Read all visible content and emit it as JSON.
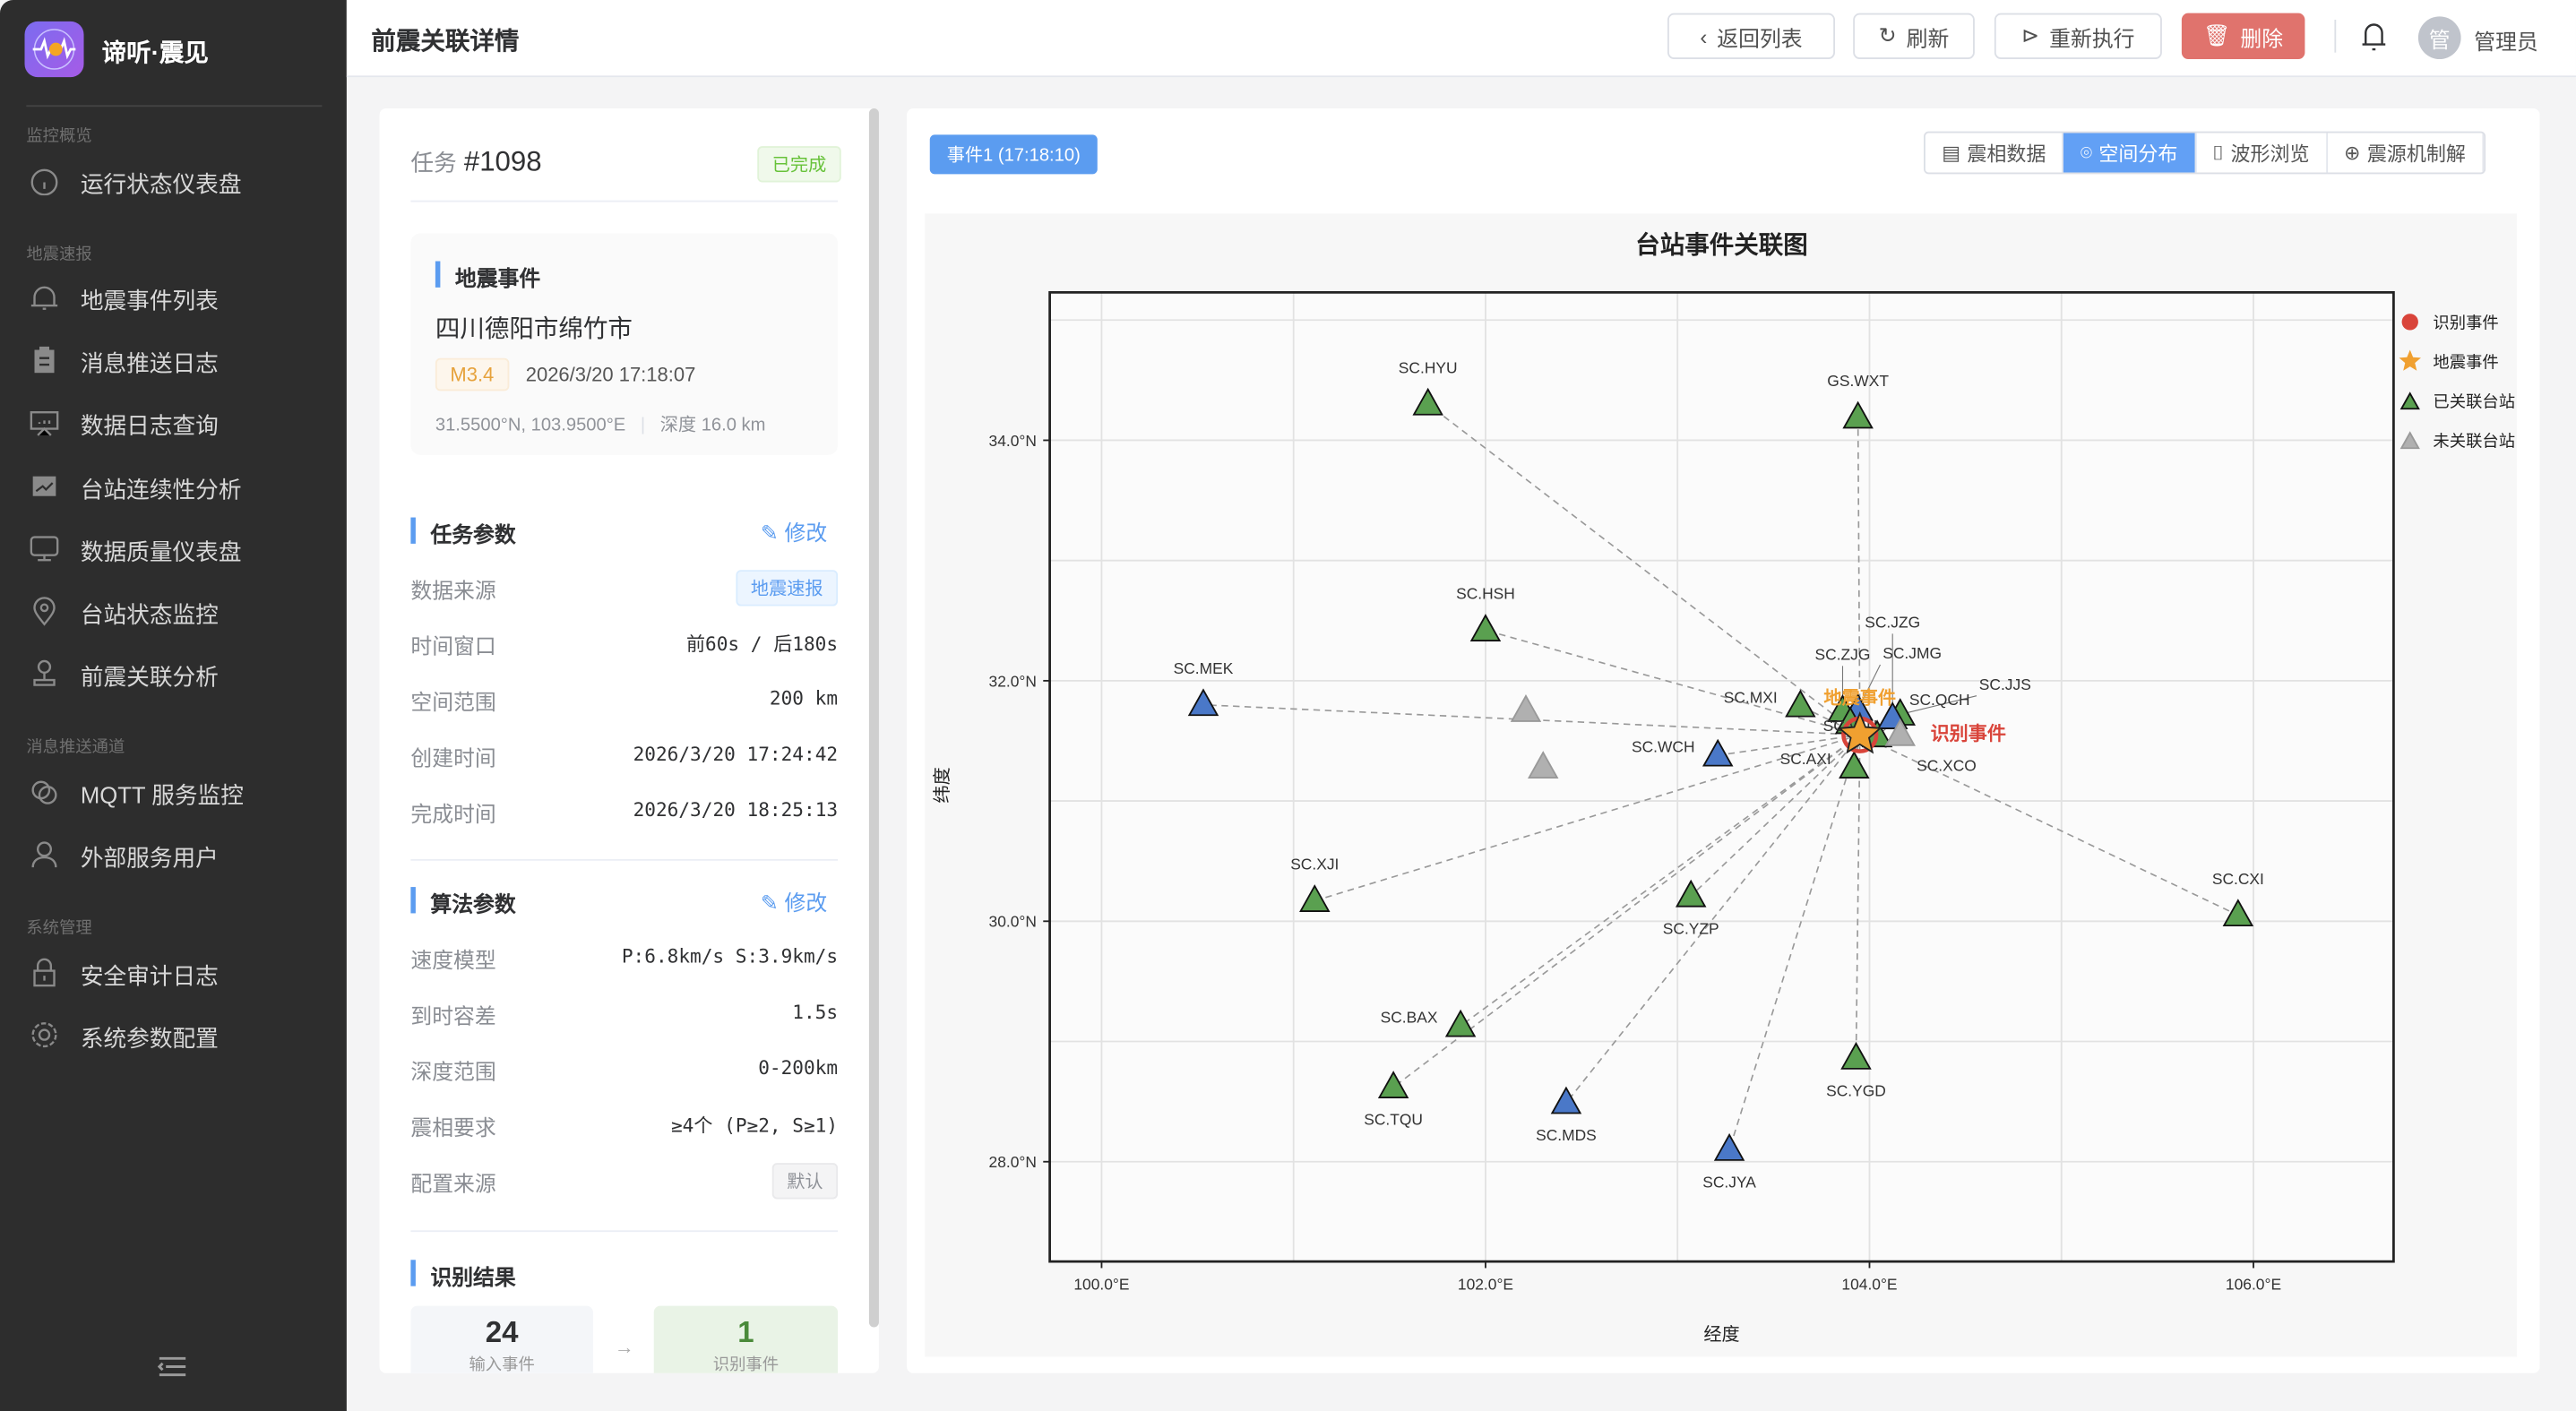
{
  "app": {
    "title": "谛听·震见"
  },
  "sidebar": {
    "sections": [
      {
        "label": "监控概览",
        "items": [
          {
            "label": "运行状态仪表盘",
            "icon": "gauge-icon"
          }
        ]
      },
      {
        "label": "地震速报",
        "items": [
          {
            "label": "地震事件列表",
            "icon": "bell-icon"
          },
          {
            "label": "消息推送日志",
            "icon": "clipboard-icon"
          },
          {
            "label": "数据日志查询",
            "icon": "presentation-icon"
          },
          {
            "label": "台站连续性分析",
            "icon": "line-chart-icon"
          },
          {
            "label": "数据质量仪表盘",
            "icon": "monitor-icon"
          },
          {
            "label": "台站状态监控",
            "icon": "location-pin-icon"
          },
          {
            "label": "前震关联分析",
            "icon": "stamp-icon"
          }
        ]
      },
      {
        "label": "消息推送通道",
        "items": [
          {
            "label": "MQTT 服务监控",
            "icon": "link-icon"
          },
          {
            "label": "外部服务用户",
            "icon": "user-icon"
          }
        ]
      },
      {
        "label": "系统管理",
        "items": [
          {
            "label": "安全审计日志",
            "icon": "lock-icon"
          },
          {
            "label": "系统参数配置",
            "icon": "gear-icon"
          }
        ]
      }
    ]
  },
  "header": {
    "title": "前震关联详情",
    "back": "返回列表",
    "refresh": "刷新",
    "rerun": "重新执行",
    "delete": "删除",
    "user": "管理员",
    "avatar": "管"
  },
  "task": {
    "prefix": "任务",
    "id": "#1098",
    "status": "已完成",
    "event": {
      "heading": "地震事件",
      "location": "四川德阳市绵竹市",
      "magnitude": "M3.4",
      "time": "2026/3/20 17:18:07",
      "coords": "31.5500°N, 103.9500°E",
      "depth": "深度 16.0 km"
    },
    "params": {
      "heading": "任务参数",
      "edit": "修改",
      "rows": [
        {
          "label": "数据来源",
          "value": "地震速报",
          "tag": true
        },
        {
          "label": "时间窗口",
          "value": "前60s / 后180s"
        },
        {
          "label": "空间范围",
          "value": "200 km"
        },
        {
          "label": "创建时间",
          "value": "2026/3/20 17:24:42"
        },
        {
          "label": "完成时间",
          "value": "2026/3/20 18:25:13"
        }
      ]
    },
    "algo": {
      "heading": "算法参数",
      "edit": "修改",
      "rows": [
        {
          "label": "速度模型",
          "value": "P:6.8km/s S:3.9km/s"
        },
        {
          "label": "到时容差",
          "value": "1.5s"
        },
        {
          "label": "深度范围",
          "value": "0-200km"
        },
        {
          "label": "震相要求",
          "value": "≥4个 (P≥2, S≥1)"
        },
        {
          "label": "配置来源",
          "value": "默认",
          "tag": true
        }
      ]
    },
    "result": {
      "heading": "识别结果",
      "input_count": "24",
      "input_label": "输入事件",
      "arrow": "→",
      "output_count": "1",
      "output_label": "识别事件"
    }
  },
  "main": {
    "event_tab": "事件1 (17:18:10)",
    "tabs": [
      {
        "label": "震相数据",
        "icon": "clipboard-icon"
      },
      {
        "label": "空间分布",
        "icon": "location-pin-icon",
        "active": true
      },
      {
        "label": "波形浏览",
        "icon": "presentation-icon"
      },
      {
        "label": "震源机制解",
        "icon": "compass-icon"
      }
    ]
  },
  "chart_data": {
    "type": "scatter",
    "title": "台站事件关联图",
    "xlabel": "经度",
    "ylabel": "纬度",
    "xlim": [
      99.73,
      106.73
    ],
    "ylim": [
      27.17,
      35.23
    ],
    "xticks": [
      {
        "v": 100,
        "label": "100.0°E"
      },
      {
        "v": 102,
        "label": "102.0°E"
      },
      {
        "v": 104,
        "label": "104.0°E"
      },
      {
        "v": 106,
        "label": "106.0°E"
      }
    ],
    "yticks": [
      {
        "v": 28,
        "label": "28.0°N"
      },
      {
        "v": 30,
        "label": "30.0°N"
      },
      {
        "v": 32,
        "label": "32.0°N"
      },
      {
        "v": 34,
        "label": "34.0°N"
      }
    ],
    "grid": true,
    "legend_position": "right",
    "legend": [
      {
        "label": "识别事件",
        "marker": "circle",
        "color": "#d9443a"
      },
      {
        "label": "地震事件",
        "marker": "star",
        "color": "#f0a030"
      },
      {
        "label": "已关联台站",
        "marker": "triangle",
        "color": "#5aa050"
      },
      {
        "label": "未关联台站",
        "marker": "triangle",
        "color": "#b0b0b0"
      }
    ],
    "event": {
      "lon": 103.95,
      "lat": 31.55,
      "label": "地震事件",
      "color": "#f0a030"
    },
    "identified": {
      "lon": 103.95,
      "lat": 31.55,
      "label": "识别事件",
      "color": "#d9443a"
    },
    "colors": {
      "associated": "#5aa050",
      "blue": "#4a78c8",
      "unassociated": "#b0b0b0"
    },
    "stations": [
      {
        "name": "SC.HYU",
        "lon": 101.7,
        "lat": 34.3,
        "kind": "associated",
        "label_pos": "above"
      },
      {
        "name": "GS.WXT",
        "lon": 103.94,
        "lat": 34.19,
        "kind": "associated",
        "label_pos": "above"
      },
      {
        "name": "SC.HSH",
        "lon": 102.0,
        "lat": 32.42,
        "kind": "associated",
        "label_pos": "above"
      },
      {
        "name": "SC.MEK",
        "lon": 100.53,
        "lat": 31.8,
        "kind": "blue",
        "label_pos": "above"
      },
      {
        "name": "",
        "lon": 102.21,
        "lat": 31.75,
        "kind": "unassociated",
        "label_pos": "above"
      },
      {
        "name": "",
        "lon": 102.3,
        "lat": 31.28,
        "kind": "unassociated",
        "label_pos": "above"
      },
      {
        "name": "SC.MXI",
        "lon": 103.64,
        "lat": 31.79,
        "kind": "associated",
        "label_pos": "left"
      },
      {
        "name": "SC.WCH",
        "lon": 103.21,
        "lat": 31.38,
        "kind": "blue",
        "label_pos": "left"
      },
      {
        "name": "SC.AXI",
        "lon": 103.92,
        "lat": 31.28,
        "kind": "associated",
        "label_pos": "left"
      },
      {
        "name": "SC.XJI",
        "lon": 101.11,
        "lat": 30.17,
        "kind": "associated",
        "label_pos": "above"
      },
      {
        "name": "SC.YZP",
        "lon": 103.07,
        "lat": 30.21,
        "kind": "associated",
        "label_pos": "below"
      },
      {
        "name": "SC.CXI",
        "lon": 105.92,
        "lat": 30.05,
        "kind": "associated",
        "label_pos": "above"
      },
      {
        "name": "SC.BAX",
        "lon": 101.87,
        "lat": 29.13,
        "kind": "associated",
        "label_pos": "left"
      },
      {
        "name": "SC.TQU",
        "lon": 101.52,
        "lat": 28.62,
        "kind": "associated",
        "label_pos": "below"
      },
      {
        "name": "SC.MDS",
        "lon": 102.42,
        "lat": 28.49,
        "kind": "blue",
        "label_pos": "below"
      },
      {
        "name": "SC.YGD",
        "lon": 103.93,
        "lat": 28.86,
        "kind": "associated",
        "label_pos": "below"
      },
      {
        "name": "SC.JYA",
        "lon": 103.27,
        "lat": 28.1,
        "kind": "blue",
        "label_pos": "below"
      },
      {
        "name": "SC.ZJG",
        "lon": 103.86,
        "lat": 31.75,
        "kind": "associated",
        "label_pos": "above"
      },
      {
        "name": "SC.JMG",
        "lon": 103.94,
        "lat": 31.76,
        "kind": "blue",
        "label_pos": "above"
      },
      {
        "name": "SC.WTI",
        "lon": 103.9,
        "lat": 31.65,
        "kind": "associated",
        "label_pos": "above"
      },
      {
        "name": "SC.QCH",
        "lon": 104.04,
        "lat": 31.54,
        "kind": "associated",
        "label_pos": "above"
      },
      {
        "name": "SC.JJS",
        "lon": 104.16,
        "lat": 31.72,
        "kind": "associated",
        "label_pos": "right"
      },
      {
        "name": "SC.JZG",
        "lon": 104.12,
        "lat": 31.69,
        "kind": "blue",
        "label_pos": "above"
      },
      {
        "name": "SC.XCO",
        "lon": 104.16,
        "lat": 31.55,
        "kind": "unassociated",
        "label_pos": "below-right"
      }
    ]
  }
}
